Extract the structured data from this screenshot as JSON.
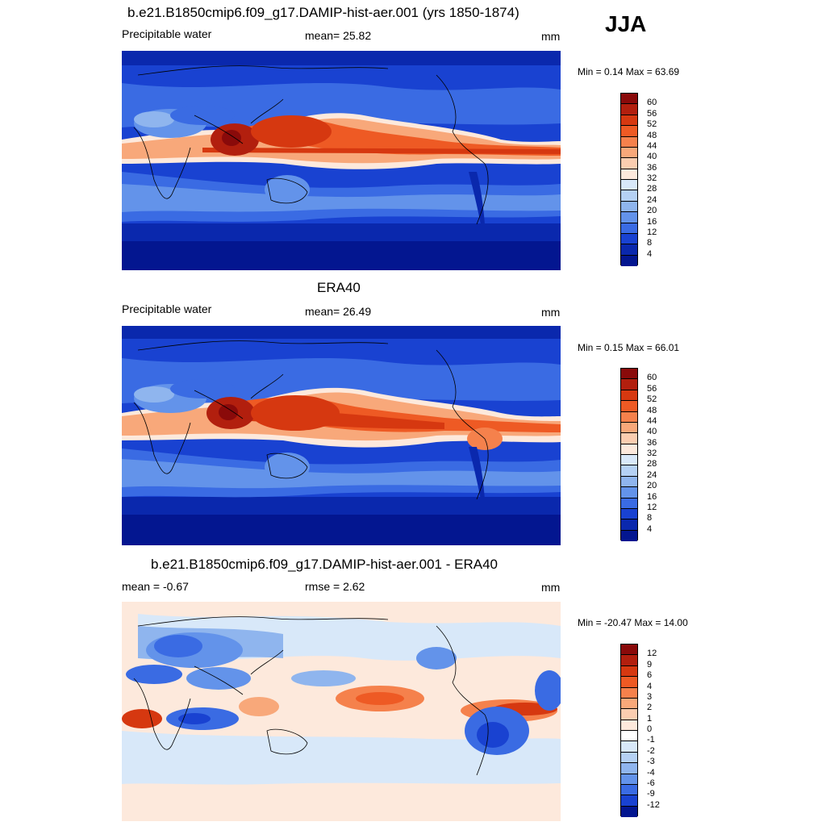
{
  "season": "JJA",
  "panels": [
    {
      "id": "model",
      "title": "b.e21.B1850cmip6.f09_g17.DAMIP-hist-aer.001 (yrs 1850-1874)",
      "left_text": "Precipitable water",
      "center_text": "mean=  25.82",
      "units": "mm",
      "minmax": "Min =   0.14 Max =  63.69",
      "colorbar": {
        "labels": [
          "60",
          "56",
          "52",
          "48",
          "44",
          "40",
          "36",
          "32",
          "28",
          "24",
          "20",
          "16",
          "12",
          "8",
          "4"
        ],
        "colors": [
          "#8a0a0a",
          "#b21f0e",
          "#d63810",
          "#ee5a24",
          "#f5814c",
          "#f8a87a",
          "#fbcdb0",
          "#fde9dc",
          "#d8e8f9",
          "#b5d1f4",
          "#8fb5ee",
          "#6393ea",
          "#3a6be3",
          "#1942d1",
          "#0a28ad",
          "#031690"
        ]
      }
    },
    {
      "id": "obs",
      "title": "ERA40",
      "left_text": "Precipitable water",
      "center_text": "mean=  26.49",
      "units": "mm",
      "minmax": "Min =   0.15 Max =  66.01",
      "colorbar": {
        "labels": [
          "60",
          "56",
          "52",
          "48",
          "44",
          "40",
          "36",
          "32",
          "28",
          "24",
          "20",
          "16",
          "12",
          "8",
          "4"
        ],
        "colors": [
          "#8a0a0a",
          "#b21f0e",
          "#d63810",
          "#ee5a24",
          "#f5814c",
          "#f8a87a",
          "#fbcdb0",
          "#fde9dc",
          "#d8e8f9",
          "#b5d1f4",
          "#8fb5ee",
          "#6393ea",
          "#3a6be3",
          "#1942d1",
          "#0a28ad",
          "#031690"
        ]
      }
    },
    {
      "id": "diff",
      "title": "b.e21.B1850cmip6.f09_g17.DAMIP-hist-aer.001 - ERA40",
      "left_text": "mean =  -0.67",
      "center_text": "rmse =    2.62",
      "units": "mm",
      "minmax": "Min = -20.47 Max =  14.00",
      "colorbar": {
        "labels": [
          "12",
          "9",
          "6",
          "4",
          "3",
          "2",
          "1",
          "0",
          "-1",
          "-2",
          "-3",
          "-4",
          "-6",
          "-9",
          "-12"
        ],
        "colors": [
          "#8a0a0a",
          "#b21f0e",
          "#d63810",
          "#ee5a24",
          "#f5814c",
          "#f8a87a",
          "#fbcdb0",
          "#fde9dc",
          "#ffffff",
          "#d8e8f9",
          "#b5d1f4",
          "#8fb5ee",
          "#6393ea",
          "#3a6be3",
          "#1942d1",
          "#031690"
        ]
      }
    }
  ]
}
